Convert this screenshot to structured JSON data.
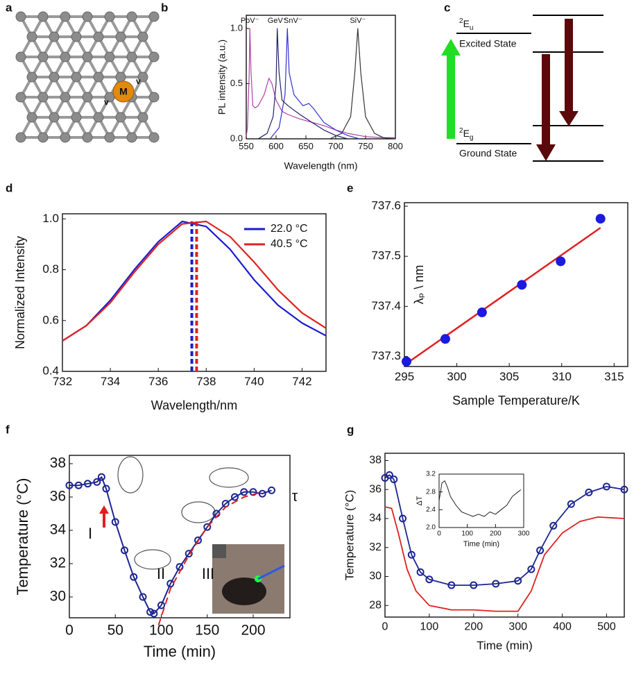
{
  "panels": {
    "a": {
      "label": "a",
      "marks": [
        "M",
        "v",
        "v"
      ]
    },
    "c": {
      "label": "c",
      "levels": [
        {
          "term": {
            "sup": "2",
            "base": "E",
            "sub": "u"
          },
          "label": "Excited State"
        },
        {
          "term": {
            "sup": "2",
            "base": "E",
            "sub": "g"
          },
          "label": "Ground State"
        }
      ]
    }
  },
  "chart_data": [
    {
      "type": "line",
      "panel": "b",
      "xlabel": "Wavelength (nm)",
      "ylabel": "PL intensity (a.u.)",
      "xlim": [
        550,
        800
      ],
      "xticks": [
        550,
        600,
        650,
        700,
        750,
        800
      ],
      "ylim": [
        0,
        1.12
      ],
      "yticks": [
        {
          "value": 0,
          "label": "0.0"
        },
        {
          "value": 0.5,
          "label": "0.5"
        },
        {
          "value": 1,
          "label": "1.0"
        }
      ],
      "name_labels": true,
      "series": [
        {
          "name": "PbV⁻",
          "color": "#b040a8",
          "x": [
            550,
            552,
            555,
            556,
            558,
            561,
            565,
            570,
            580,
            588,
            593,
            600,
            610,
            620,
            640,
            660,
            680,
            700,
            720,
            750,
            780,
            800
          ],
          "values": [
            0.02,
            0.1,
            0.6,
            1.0,
            0.6,
            0.3,
            0.28,
            0.3,
            0.4,
            0.55,
            0.5,
            0.35,
            0.25,
            0.22,
            0.18,
            0.15,
            0.12,
            0.08,
            0.05,
            0.02,
            0.01,
            0.01
          ]
        },
        {
          "name": "GeV⁻",
          "color": "#20206a",
          "x": [
            570,
            585,
            595,
            600,
            602,
            605,
            610,
            620,
            640,
            660,
            680,
            700,
            720
          ],
          "values": [
            0,
            0.05,
            0.2,
            0.5,
            1.0,
            0.6,
            0.35,
            0.3,
            0.22,
            0.15,
            0.08,
            0.03,
            0
          ]
        },
        {
          "name": "SnV⁻",
          "color": "#3030d0",
          "x": [
            590,
            605,
            615,
            619,
            622,
            630,
            645,
            655,
            662,
            680,
            700,
            720,
            740
          ],
          "values": [
            0,
            0.1,
            0.4,
            1.0,
            0.6,
            0.4,
            0.3,
            0.32,
            0.28,
            0.15,
            0.08,
            0.03,
            0
          ]
        },
        {
          "name": "SiV⁻",
          "color": "#333333",
          "x": [
            690,
            710,
            725,
            732,
            737,
            742,
            750,
            765,
            780,
            800
          ],
          "values": [
            0,
            0.05,
            0.2,
            0.6,
            1.0,
            0.6,
            0.2,
            0.05,
            0.01,
            0
          ]
        }
      ]
    },
    {
      "type": "line",
      "panel": "d",
      "xlabel": "Wavelength/nm",
      "ylabel": "Normalized Intensity",
      "xlim": [
        732,
        743
      ],
      "xticks": [
        732,
        734,
        736,
        738,
        740,
        742
      ],
      "ylim": [
        0.4,
        1.02
      ],
      "yticks": [
        0.4,
        0.6,
        0.8,
        {
          "value": 1,
          "label": "1.0"
        }
      ],
      "legend": "upper right",
      "x": [
        732,
        733,
        734,
        735,
        736,
        737,
        738,
        739,
        740,
        741,
        742,
        743
      ],
      "series": [
        {
          "name": "22.0 °C",
          "color": "#1a1ad0",
          "peak": 737.4,
          "values": [
            0.52,
            0.58,
            0.68,
            0.8,
            0.91,
            0.99,
            0.97,
            0.88,
            0.76,
            0.66,
            0.59,
            0.54
          ]
        },
        {
          "name": "40.5 °C",
          "color": "#e02020",
          "peak": 737.6,
          "values": [
            0.52,
            0.58,
            0.67,
            0.79,
            0.9,
            0.98,
            0.99,
            0.93,
            0.83,
            0.72,
            0.63,
            0.57
          ]
        }
      ]
    },
    {
      "type": "scatter",
      "panel": "e",
      "xlabel": "Sample Temperature/K",
      "ylabel": "λₚ \\ nm",
      "xlim": [
        295,
        316.3
      ],
      "xticks": [
        295,
        300,
        305,
        310,
        315
      ],
      "ylim": [
        737.28,
        737.607
      ],
      "yticks": [
        737.3,
        737.4,
        737.5,
        737.6
      ],
      "color": "#1a1ae0",
      "x": [
        295.2,
        298.9,
        302.4,
        306.2,
        309.9,
        313.7
      ],
      "values": [
        737.29,
        737.335,
        737.388,
        737.443,
        737.49,
        737.575
      ],
      "fit": {
        "color": "#e02020",
        "x": [
          295,
          313.7
        ],
        "values": [
          737.283,
          737.557
        ]
      }
    },
    {
      "type": "line",
      "panel": "f",
      "xlabel": "Time (min)",
      "ylabel": "Temperature (°C)",
      "xlim": [
        0,
        240
      ],
      "xticks": [
        0,
        50,
        100,
        150,
        200
      ],
      "ylim": [
        28.75,
        38.5
      ],
      "yticks": [
        30,
        32,
        34,
        36,
        38
      ],
      "annotations": [
        "I",
        "II",
        "III",
        "τ"
      ],
      "series": [
        {
          "color": "#1c2590",
          "marker": "circle",
          "x": [
            0,
            10,
            20,
            30,
            35,
            40,
            50,
            60,
            70,
            80,
            88,
            92,
            100,
            110,
            120,
            130,
            140,
            150,
            160,
            170,
            180,
            190,
            200,
            210,
            220
          ],
          "values": [
            36.7,
            36.7,
            36.8,
            36.9,
            37.2,
            36.5,
            34.5,
            32.8,
            31.2,
            30,
            29.1,
            29.0,
            29.5,
            30.8,
            31.8,
            32.6,
            33.4,
            34.2,
            35,
            35.6,
            36,
            36.3,
            36.3,
            36.2,
            36.4
          ]
        },
        {
          "color": "#e02020",
          "dashed": true,
          "x": [
            97,
            110,
            130,
            150,
            170,
            190,
            210
          ],
          "values": [
            28.3,
            30.5,
            32.5,
            34.2,
            35.4,
            36,
            36.3
          ]
        }
      ]
    },
    {
      "type": "line",
      "panel": "g",
      "xlabel": "Time (min)",
      "ylabel": "Temperature (°C)",
      "xlim": [
        0,
        540
      ],
      "xticks": [
        0,
        100,
        200,
        300,
        400,
        500
      ],
      "ylim": [
        27.2,
        38.5
      ],
      "yticks": [
        28,
        30,
        32,
        34,
        36,
        38
      ],
      "series": [
        {
          "color": "#1c2590",
          "marker": "circle",
          "x": [
            0,
            10,
            20,
            40,
            60,
            80,
            100,
            150,
            200,
            250,
            300,
            330,
            350,
            380,
            420,
            460,
            500,
            540
          ],
          "values": [
            36.8,
            37,
            36.7,
            34,
            31.5,
            30.3,
            29.8,
            29.4,
            29.4,
            29.5,
            29.7,
            30.5,
            31.8,
            33.5,
            35,
            35.8,
            36.2,
            36
          ]
        },
        {
          "color": "#e02020",
          "x": [
            0,
            15,
            30,
            50,
            70,
            100,
            150,
            200,
            250,
            300,
            330,
            360,
            400,
            440,
            480,
            540
          ],
          "values": [
            34.8,
            34.7,
            33,
            30.5,
            29,
            28,
            27.7,
            27.7,
            27.6,
            27.6,
            29,
            31.5,
            33,
            33.8,
            34.1,
            34
          ]
        }
      ]
    },
    {
      "type": "line",
      "xlabel": "Time (min)",
      "ylabel": "ΔT",
      "xlim": [
        0,
        300
      ],
      "xticks": [
        0,
        100,
        200,
        300
      ],
      "ylim": [
        2.0,
        3.2
      ],
      "yticks": [
        {
          "value": 2,
          "label": "2.0"
        },
        2.4,
        2.8,
        3.2
      ],
      "series": [
        {
          "color": "#222222",
          "x": [
            0,
            10,
            20,
            30,
            40,
            60,
            80,
            100,
            120,
            140,
            160,
            180,
            200,
            220,
            240,
            260,
            280,
            290
          ],
          "values": [
            2.6,
            3.0,
            3.05,
            2.9,
            2.7,
            2.5,
            2.35,
            2.3,
            2.25,
            2.3,
            2.25,
            2.35,
            2.3,
            2.4,
            2.5,
            2.7,
            2.8,
            2.85
          ]
        }
      ]
    }
  ]
}
